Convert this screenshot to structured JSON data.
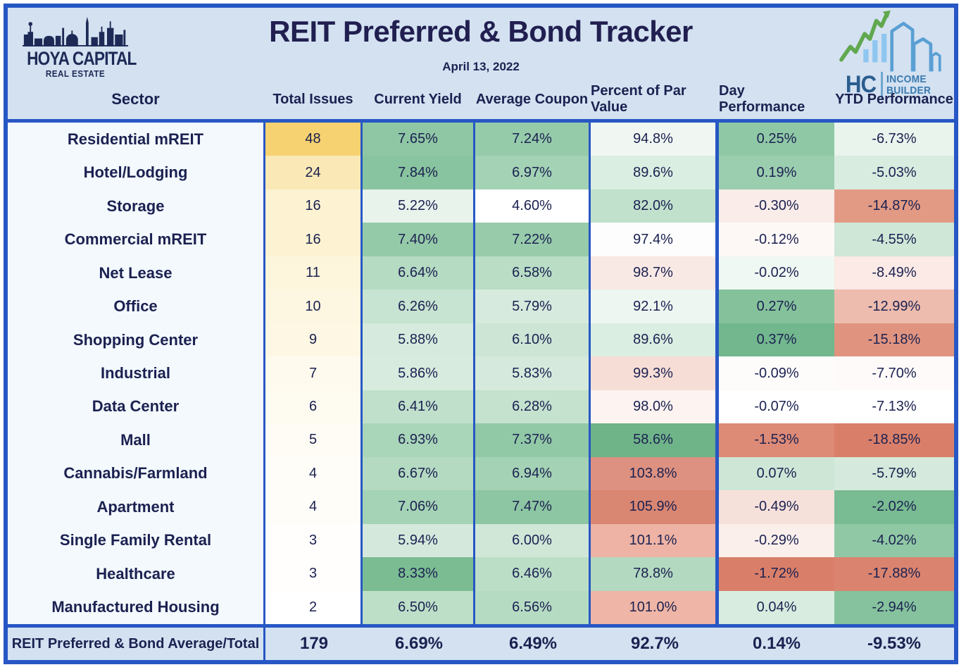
{
  "header": {
    "title": "REIT Preferred & Bond Tracker",
    "date": "April 13, 2022",
    "logo_left": {
      "line1": "HOYA CAPITAL",
      "line2": "REAL ESTATE"
    },
    "logo_right": {
      "hc": "HC",
      "line1": "INCOME",
      "line2": "BUILDER"
    }
  },
  "columns": [
    "Sector",
    "Total Issues",
    "Current Yield",
    "Average Coupon",
    "Percent of Par Value",
    "Day Performance",
    "YTD Performance"
  ],
  "table": {
    "rows": [
      {
        "cells": [
          "Residential mREIT",
          "48",
          "7.65%",
          "7.24%",
          "94.8%",
          "0.25%",
          "-6.73%"
        ],
        "colors": [
          null,
          "#f6d271",
          "#8fc7a4",
          "#96cbaa",
          "#f0f7f2",
          "#8fc8a5",
          "#e9f4ed"
        ]
      },
      {
        "cells": [
          "Hotel/Lodging",
          "24",
          "7.84%",
          "6.97%",
          "89.6%",
          "0.19%",
          "-5.03%"
        ],
        "colors": [
          null,
          "#fae9b6",
          "#88c49f",
          "#a3d2b4",
          "#daeee1",
          "#9bcdaf",
          "#d8ecdf"
        ]
      },
      {
        "cells": [
          "Storage",
          "16",
          "5.22%",
          "4.60%",
          "82.0%",
          "-0.30%",
          "-14.87%"
        ],
        "colors": [
          null,
          "#fdf2d2",
          "#e8f3ec",
          "#ffffff",
          "#c1e1cc",
          "#f9ece9",
          "#e29a85"
        ]
      },
      {
        "cells": [
          "Commercial mREIT",
          "16",
          "7.40%",
          "7.22%",
          "97.4%",
          "-0.12%",
          "-4.55%"
        ],
        "colors": [
          null,
          "#fdf2d2",
          "#95caa9",
          "#97cbaa",
          "#fcfdfc",
          "#fdf8f6",
          "#cfe7d7"
        ]
      },
      {
        "cells": [
          "Net Lease",
          "11",
          "6.64%",
          "6.58%",
          "98.7%",
          "-0.02%",
          "-8.49%"
        ],
        "colors": [
          null,
          "#fdf5dc",
          "#b5dbc2",
          "#b9ddc5",
          "#f9e9e5",
          "#f0f8f3",
          "#fbeae6"
        ]
      },
      {
        "cells": [
          "Office",
          "10",
          "6.26%",
          "5.79%",
          "92.1%",
          "0.27%",
          "-12.99%"
        ],
        "colors": [
          null,
          "#fdf6e0",
          "#c7e3d1",
          "#d6eadd",
          "#eef6f1",
          "#85c29c",
          "#edbcae"
        ]
      },
      {
        "cells": [
          "Shopping Center",
          "9",
          "5.88%",
          "6.10%",
          "89.6%",
          "0.37%",
          "-15.18%"
        ],
        "colors": [
          null,
          "#fef7e4",
          "#d6ebdd",
          "#cce5d5",
          "#daeee1",
          "#72b78e",
          "#e09480"
        ]
      },
      {
        "cells": [
          "Industrial",
          "7",
          "5.86%",
          "5.83%",
          "99.3%",
          "-0.09%",
          "-7.70%"
        ],
        "colors": [
          null,
          "#fefaed",
          "#d7ebde",
          "#d5eadc",
          "#f6ded7",
          "#fefcfb",
          "#fdfaf9"
        ]
      },
      {
        "cells": [
          "Data Center",
          "6",
          "6.41%",
          "6.28%",
          "98.0%",
          "-0.07%",
          "-7.13%"
        ],
        "colors": [
          null,
          "#fefbf1",
          "#c0e0cb",
          "#c4e2ce",
          "#fdf3f0",
          "#ffffff",
          "#ffffff"
        ]
      },
      {
        "cells": [
          "Mall",
          "5",
          "6.93%",
          "7.37%",
          "58.6%",
          "-1.53%",
          "-18.85%"
        ],
        "colors": [
          null,
          "#fffcf5",
          "#a9d5b9",
          "#91c8a6",
          "#6fb489",
          "#dd8a76",
          "#d97f69"
        ]
      },
      {
        "cells": [
          "Cannabis/Farmland",
          "4",
          "6.67%",
          "6.94%",
          "103.8%",
          "0.07%",
          "-5.79%"
        ],
        "colors": [
          null,
          "#fffdf8",
          "#b4dac1",
          "#a4d2b4",
          "#dd9181",
          "#cde6d6",
          "#d5eadc"
        ]
      },
      {
        "cells": [
          "Apartment",
          "4",
          "7.06%",
          "7.47%",
          "105.9%",
          "-0.49%",
          "-2.02%"
        ],
        "colors": [
          null,
          "#fffdf8",
          "#a4d3b5",
          "#8dc6a2",
          "#d98672",
          "#f6e0da",
          "#79bb92"
        ]
      },
      {
        "cells": [
          "Single Family Rental",
          "3",
          "5.94%",
          "6.00%",
          "101.1%",
          "-0.29%",
          "-4.02%"
        ],
        "colors": [
          null,
          "#fffefc",
          "#d4e9db",
          "#d0e7d8",
          "#eeb3a4",
          "#fbefec",
          "#90c8a5"
        ]
      },
      {
        "cells": [
          "Healthcare",
          "3",
          "8.33%",
          "6.46%",
          "78.8%",
          "-1.72%",
          "-17.88%"
        ],
        "colors": [
          null,
          "#fffefc",
          "#7bbc93",
          "#bbdec7",
          "#b3d9c0",
          "#d97f69",
          "#da8470"
        ]
      },
      {
        "cells": [
          "Manufactured Housing",
          "2",
          "6.50%",
          "6.56%",
          "101.0%",
          "0.04%",
          "-2.94%"
        ],
        "colors": [
          null,
          "#ffffff",
          "#bddfc8",
          "#b6dbc3",
          "#efb5a6",
          "#d8ecdf",
          "#85c29d"
        ]
      }
    ],
    "total": {
      "cells": [
        "REIT Preferred & Bond Average/Total",
        "179",
        "6.69%",
        "6.49%",
        "92.7%",
        "0.14%",
        "-9.53%"
      ]
    }
  },
  "colors": {
    "border_blue": "#2757c4",
    "header_bg": "#d3e1f1",
    "sector_bg": "#f3f9fd",
    "text_navy": "#1b2150",
    "logo_navy": "#1e2a56",
    "logo_green": "#60a84e",
    "logo_light_blue": "#8ec6ef",
    "logo_blue": "#2a5d8f"
  },
  "chart_data": {
    "type": "table",
    "title": "REIT Preferred & Bond Tracker",
    "date": "April 13, 2022",
    "columns": [
      "Sector",
      "Total Issues",
      "Current Yield",
      "Average Coupon",
      "Percent of Par Value",
      "Day Performance",
      "YTD Performance"
    ],
    "rows": [
      [
        "Residential mREIT",
        48,
        7.65,
        7.24,
        94.8,
        0.25,
        -6.73
      ],
      [
        "Hotel/Lodging",
        24,
        7.84,
        6.97,
        89.6,
        0.19,
        -5.03
      ],
      [
        "Storage",
        16,
        5.22,
        4.6,
        82.0,
        -0.3,
        -14.87
      ],
      [
        "Commercial mREIT",
        16,
        7.4,
        7.22,
        97.4,
        -0.12,
        -4.55
      ],
      [
        "Net Lease",
        11,
        6.64,
        6.58,
        98.7,
        -0.02,
        -8.49
      ],
      [
        "Office",
        10,
        6.26,
        5.79,
        92.1,
        0.27,
        -12.99
      ],
      [
        "Shopping Center",
        9,
        5.88,
        6.1,
        89.6,
        0.37,
        -15.18
      ],
      [
        "Industrial",
        7,
        5.86,
        5.83,
        99.3,
        -0.09,
        -7.7
      ],
      [
        "Data Center",
        6,
        6.41,
        6.28,
        98.0,
        -0.07,
        -7.13
      ],
      [
        "Mall",
        5,
        6.93,
        7.37,
        58.6,
        -1.53,
        -18.85
      ],
      [
        "Cannabis/Farmland",
        4,
        6.67,
        6.94,
        103.8,
        0.07,
        -5.79
      ],
      [
        "Apartment",
        4,
        7.06,
        7.47,
        105.9,
        -0.49,
        -2.02
      ],
      [
        "Single Family Rental",
        3,
        5.94,
        6.0,
        101.1,
        -0.29,
        -4.02
      ],
      [
        "Healthcare",
        3,
        8.33,
        6.46,
        78.8,
        -1.72,
        -17.88
      ],
      [
        "Manufactured Housing",
        2,
        6.5,
        6.56,
        101.0,
        0.04,
        -2.94
      ]
    ],
    "total_row": [
      "REIT Preferred & Bond Average/Total",
      179,
      6.69,
      6.49,
      92.7,
      0.14,
      -9.53
    ],
    "notes": "Cell backgrounds are conditional-format color scales: yellow scale for Total Issues, green scale for yields/coupons, green-white-red diverging for par value and performance columns."
  }
}
